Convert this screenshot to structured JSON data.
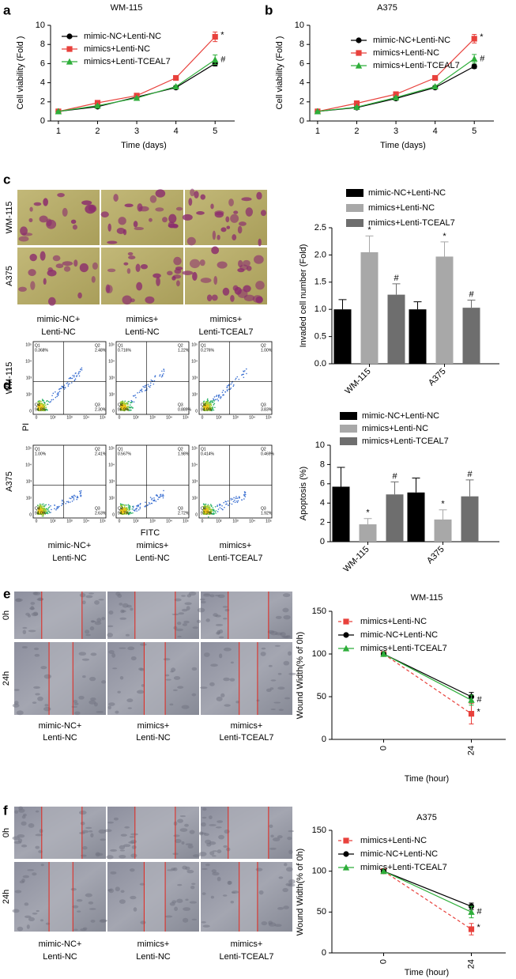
{
  "chart_data": [
    {
      "type": "line",
      "title": "WM-115",
      "xlabel": "Time (days)",
      "ylabel": "Cell viability (Fold )",
      "x": [
        1,
        2,
        3,
        4,
        5
      ],
      "xlim": [
        0.8,
        5.5
      ],
      "xticks": [
        1,
        2,
        3,
        4,
        5
      ],
      "ylim": [
        0,
        10
      ],
      "yticks": [
        0,
        2,
        4,
        6,
        8,
        10
      ],
      "series": [
        {
          "name": "mimic-NC+Lenti-NC",
          "color": "#000000",
          "marker": "circle",
          "values": [
            1,
            1.5,
            2.5,
            3.5,
            6.0
          ],
          "errors": [
            0.05,
            0.08,
            0.1,
            0.12,
            0.25
          ],
          "annotations": [
            null,
            null,
            null,
            null,
            null
          ]
        },
        {
          "name": "mimics+Lenti-NC",
          "color": "#e8413c",
          "marker": "square",
          "values": [
            1,
            1.9,
            2.65,
            4.5,
            8.8
          ],
          "errors": [
            0.05,
            0.1,
            0.12,
            0.2,
            0.5
          ],
          "annotations": [
            null,
            null,
            null,
            null,
            "*"
          ]
        },
        {
          "name": "mimics+Lenti-TCEAL7",
          "color": "#2eae3a",
          "marker": "triangle",
          "values": [
            1,
            1.6,
            2.4,
            3.6,
            6.4
          ],
          "errors": [
            0.05,
            0.08,
            0.1,
            0.12,
            0.5
          ],
          "annotations": [
            null,
            null,
            null,
            null,
            "#"
          ]
        }
      ]
    },
    {
      "type": "line",
      "title": "A375",
      "xlabel": "Time (days)",
      "ylabel": "Cell viability (Fold )",
      "x": [
        1,
        2,
        3,
        4,
        5
      ],
      "xlim": [
        0.8,
        5.5
      ],
      "xticks": [
        1,
        2,
        3,
        4,
        5
      ],
      "ylim": [
        0,
        10
      ],
      "yticks": [
        0,
        2,
        4,
        6,
        8,
        10
      ],
      "series": [
        {
          "name": "mimic-NC+Lenti-NC",
          "color": "#000000",
          "marker": "circle",
          "values": [
            1,
            1.4,
            2.35,
            3.5,
            5.7
          ],
          "errors": [
            0.05,
            0.08,
            0.1,
            0.12,
            0.2
          ],
          "annotations": [
            null,
            null,
            null,
            null,
            null
          ]
        },
        {
          "name": "mimics+Lenti-NC",
          "color": "#e8413c",
          "marker": "square",
          "values": [
            1,
            1.85,
            2.8,
            4.5,
            8.6
          ],
          "errors": [
            0.05,
            0.1,
            0.12,
            0.2,
            0.45
          ],
          "annotations": [
            null,
            null,
            null,
            null,
            "*"
          ]
        },
        {
          "name": "mimics+Lenti-TCEAL7",
          "color": "#2eae3a",
          "marker": "triangle",
          "values": [
            1,
            1.45,
            2.45,
            3.6,
            6.5
          ],
          "errors": [
            0.05,
            0.08,
            0.1,
            0.12,
            0.45
          ],
          "annotations": [
            null,
            null,
            null,
            null,
            "#"
          ]
        }
      ]
    },
    {
      "type": "bar",
      "ylabel": "Invaded cell number (Fold)",
      "categories": [
        "WM-115",
        "A375"
      ],
      "ylim": [
        0,
        2.5
      ],
      "yticks": [
        {
          "value": 0,
          "label": "0.0"
        },
        0.5,
        {
          "value": 1,
          "label": "1.0"
        },
        1.5,
        {
          "value": 2,
          "label": "2.0"
        },
        2.5
      ],
      "series": [
        {
          "name": "mimic-NC+Lenti-NC",
          "color": "#000000",
          "values": [
            1.0,
            1.0
          ],
          "errors": [
            0.18,
            0.14
          ],
          "annotations": [
            null,
            null
          ]
        },
        {
          "name": "mimics+Lenti-NC",
          "color": "#a8a8a8",
          "values": [
            2.05,
            1.97
          ],
          "errors": [
            0.3,
            0.27
          ],
          "annotations": [
            "*",
            "*"
          ]
        },
        {
          "name": "mimics+Lenti-TCEAL7",
          "color": "#6e6e6e",
          "values": [
            1.27,
            1.03
          ],
          "errors": [
            0.2,
            0.14
          ],
          "annotations": [
            "#",
            "#"
          ]
        }
      ]
    },
    {
      "type": "bar",
      "ylabel": "Apoptosis (%)",
      "categories": [
        "WM-115",
        "A375"
      ],
      "ylim": [
        0,
        10
      ],
      "yticks": [
        0,
        2,
        4,
        6,
        8,
        10
      ],
      "series": [
        {
          "name": "mimic-NC+Lenti-NC",
          "color": "#000000",
          "values": [
            5.7,
            5.1
          ],
          "errors": [
            2.0,
            1.5
          ],
          "annotations": [
            null,
            null
          ]
        },
        {
          "name": "mimics+Lenti-NC",
          "color": "#a8a8a8",
          "values": [
            1.8,
            2.3
          ],
          "errors": [
            0.6,
            1.0
          ],
          "annotations": [
            "*",
            "*"
          ]
        },
        {
          "name": "mimics+Lenti-TCEAL7",
          "color": "#6e6e6e",
          "values": [
            4.9,
            4.7
          ],
          "errors": [
            1.3,
            1.7
          ],
          "annotations": [
            "#",
            "#"
          ]
        }
      ]
    },
    {
      "type": "line",
      "title": "WM-115",
      "xlabel": "Time (hour)",
      "ylabel": "Wound Width(% of 0h)",
      "categories": [
        "0",
        "24"
      ],
      "ylim": [
        0,
        150
      ],
      "yticks": [
        0,
        50,
        100,
        150
      ],
      "series": [
        {
          "name": "mimics+Lenti-NC",
          "color": "#e8413c",
          "marker": "square",
          "dash": "dashed",
          "values": [
            100,
            30
          ],
          "errors": [
            2,
            12
          ],
          "annotations": [
            null,
            "*"
          ]
        },
        {
          "name": "mimic-NC+Lenti-NC",
          "color": "#000000",
          "marker": "circle",
          "values": [
            100,
            50
          ],
          "errors": [
            2,
            5
          ],
          "annotations": [
            null,
            null
          ]
        },
        {
          "name": "mimics+Lenti-TCEAL7",
          "color": "#2eae3a",
          "marker": "triangle",
          "values": [
            100,
            46
          ],
          "errors": [
            2,
            6
          ],
          "annotations": [
            null,
            "#"
          ]
        }
      ]
    },
    {
      "type": "line",
      "title": "A375",
      "xlabel": "Time (hour)",
      "ylabel": "Wound Width(% of 0h)",
      "categories": [
        "0",
        "24"
      ],
      "ylim": [
        0,
        150
      ],
      "yticks": [
        0,
        50,
        100,
        150
      ],
      "series": [
        {
          "name": "mimics+Lenti-NC",
          "color": "#e8413c",
          "marker": "square",
          "dash": "dashed",
          "values": [
            100,
            29
          ],
          "errors": [
            2,
            7
          ],
          "annotations": [
            null,
            "*"
          ]
        },
        {
          "name": "mimic-NC+Lenti-NC",
          "color": "#000000",
          "marker": "circle",
          "values": [
            100,
            57
          ],
          "errors": [
            2,
            4
          ],
          "annotations": [
            null,
            null
          ]
        },
        {
          "name": "mimics+Lenti-TCEAL7",
          "color": "#2eae3a",
          "marker": "triangle",
          "values": [
            100,
            50
          ],
          "errors": [
            2,
            7
          ],
          "annotations": [
            null,
            "#"
          ]
        }
      ]
    }
  ],
  "figure": {
    "panel_labels": [
      "a",
      "b",
      "c",
      "d",
      "e",
      "f"
    ],
    "invasion": {
      "rows": [
        "WM-115",
        "A375"
      ],
      "columns": [
        [
          "mimic-NC+",
          "Lenti-NC"
        ],
        [
          "mimics+",
          "Lenti-NC"
        ],
        [
          "mimics+",
          "Lenti-TCEAL7"
        ]
      ]
    },
    "flow": {
      "rows": [
        "WM-115",
        "A375"
      ],
      "columns": [
        [
          "mimic-NC+",
          "Lenti-NC"
        ],
        [
          "mimics+",
          "Lenti-NC"
        ],
        [
          "mimics+",
          "Lenti-TCEAL7"
        ]
      ],
      "y_label": "PI",
      "x_label": "FITC",
      "axis_ticks": [
        "0",
        "10²",
        "10³",
        "10⁴",
        "10⁵"
      ],
      "plots": [
        [
          [
            {
              "name": "Q1",
              "value": "0.368%"
            },
            {
              "name": "Q2",
              "value": "2.48%"
            },
            {
              "name": "Q3",
              "value": "2.30%"
            },
            {
              "name": "Q4",
              "value": "94.8%"
            }
          ],
          [
            {
              "name": "Q1",
              "value": "0.716%"
            },
            {
              "name": "Q2",
              "value": "1.22%"
            },
            {
              "name": "Q3",
              "value": "0.889%"
            },
            {
              "name": "Q4",
              "value": "96.9%"
            }
          ],
          [
            {
              "name": "Q1",
              "value": "0.276%"
            },
            {
              "name": "Q2",
              "value": "1.00%"
            },
            {
              "name": "Q3",
              "value": "3.83%"
            },
            {
              "name": "Q4",
              "value": "94.9%"
            }
          ]
        ],
        [
          [
            {
              "name": "Q1",
              "value": "1.00%"
            },
            {
              "name": "Q2",
              "value": "2.41%"
            },
            {
              "name": "Q3",
              "value": "2.63%"
            },
            {
              "name": "Q4",
              "value": "94.0%"
            }
          ],
          [
            {
              "name": "Q1",
              "value": "0.567%"
            },
            {
              "name": "Q2",
              "value": "1.98%"
            },
            {
              "name": "Q3",
              "value": "2.72%"
            },
            {
              "name": "Q4",
              "value": "94.7%"
            }
          ],
          [
            {
              "name": "Q1",
              "value": "0.414%"
            },
            {
              "name": "Q2",
              "value": "0.469%"
            },
            {
              "name": "Q3",
              "value": "1.92%"
            },
            {
              "name": "Q4",
              "value": "97.2%"
            }
          ]
        ]
      ]
    },
    "wound_e": {
      "rows": [
        "0h",
        "24h"
      ],
      "columns": [
        [
          "mimic-NC+",
          "Lenti-NC"
        ],
        [
          "mimics+",
          "Lenti-NC"
        ],
        [
          "mimics+",
          "Lenti-TCEAL7"
        ]
      ]
    },
    "wound_f": {
      "rows": [
        "0h",
        "24h"
      ],
      "columns": [
        [
          "mimic-NC+",
          "Lenti-NC"
        ],
        [
          "mimics+",
          "Lenti-NC"
        ],
        [
          "mimics+",
          "Lenti-TCEAL7"
        ]
      ]
    }
  }
}
